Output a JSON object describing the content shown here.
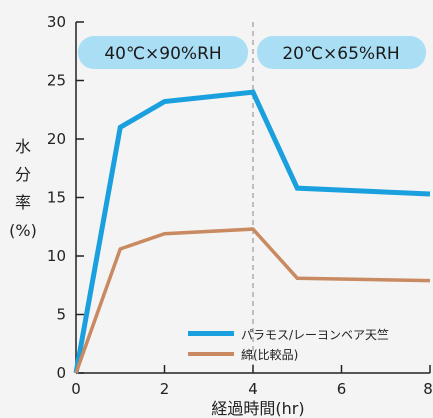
{
  "chart_data": {
    "type": "line",
    "xlabel": "経過時間(hr)",
    "ylabel": [
      "水",
      "分",
      "率",
      "(%)"
    ],
    "xlim": [
      0,
      8
    ],
    "ylim": [
      0,
      30
    ],
    "xticks": [
      "0",
      "2",
      "4",
      "6",
      "8"
    ],
    "yticks": [
      "0",
      "5",
      "10",
      "15",
      "20",
      "25",
      "30"
    ],
    "conditions": [
      {
        "label": "40℃×90%RH",
        "x_range": [
          0,
          4
        ]
      },
      {
        "label": "20℃×65%RH",
        "x_range": [
          4,
          8
        ]
      }
    ],
    "divider_x": 4,
    "legend_position": "bottom-right",
    "series": [
      {
        "name": "パラモス/レーヨンベア天竺",
        "color": "#1aa0de",
        "points": [
          [
            0,
            0
          ],
          [
            1,
            21
          ],
          [
            2,
            23.2
          ],
          [
            4,
            24
          ],
          [
            5,
            15.8
          ],
          [
            8,
            15.3
          ]
        ]
      },
      {
        "name": "綿(比較品)",
        "color": "#c98a62",
        "points": [
          [
            0,
            0
          ],
          [
            1,
            10.6
          ],
          [
            2,
            11.9
          ],
          [
            4,
            12.3
          ],
          [
            5,
            8.1
          ],
          [
            8,
            7.9
          ]
        ]
      }
    ]
  },
  "colors": {
    "condition_pill": "#a9def5",
    "axis": "#222222",
    "divider": "#888888"
  }
}
